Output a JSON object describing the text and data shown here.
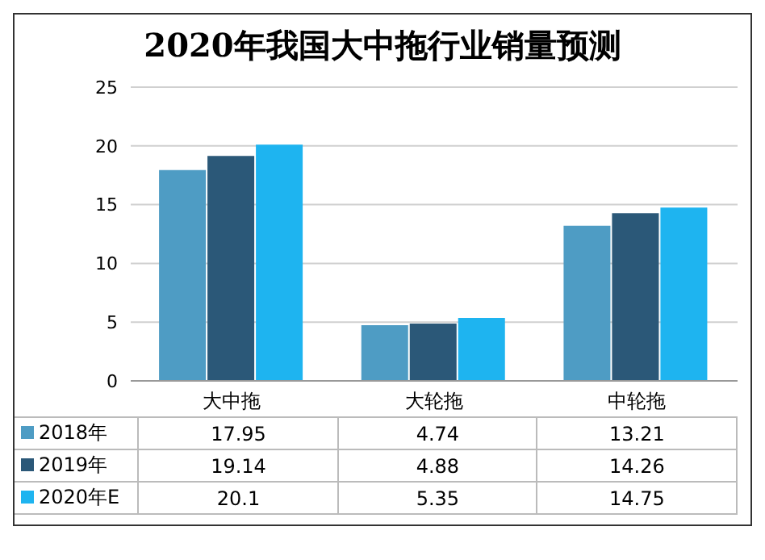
{
  "chart_data": {
    "type": "bar",
    "title": "2020年我国大中拖行业销量预测",
    "categories": [
      "大中拖",
      "大轮拖",
      "中轮拖"
    ],
    "series": [
      {
        "name": "2018年",
        "color": "#4e9cc4",
        "values": [
          17.95,
          4.74,
          13.21
        ]
      },
      {
        "name": "2019年",
        "color": "#2b5878",
        "values": [
          19.14,
          4.88,
          14.26
        ]
      },
      {
        "name": "2020年E",
        "color": "#1eb4f0",
        "values": [
          20.1,
          5.35,
          14.75
        ]
      }
    ],
    "ylim": [
      0,
      25
    ],
    "yticks": [
      0,
      5,
      10,
      15,
      20,
      25
    ],
    "grid": "y",
    "legend": "bottom",
    "data_labels": true
  }
}
